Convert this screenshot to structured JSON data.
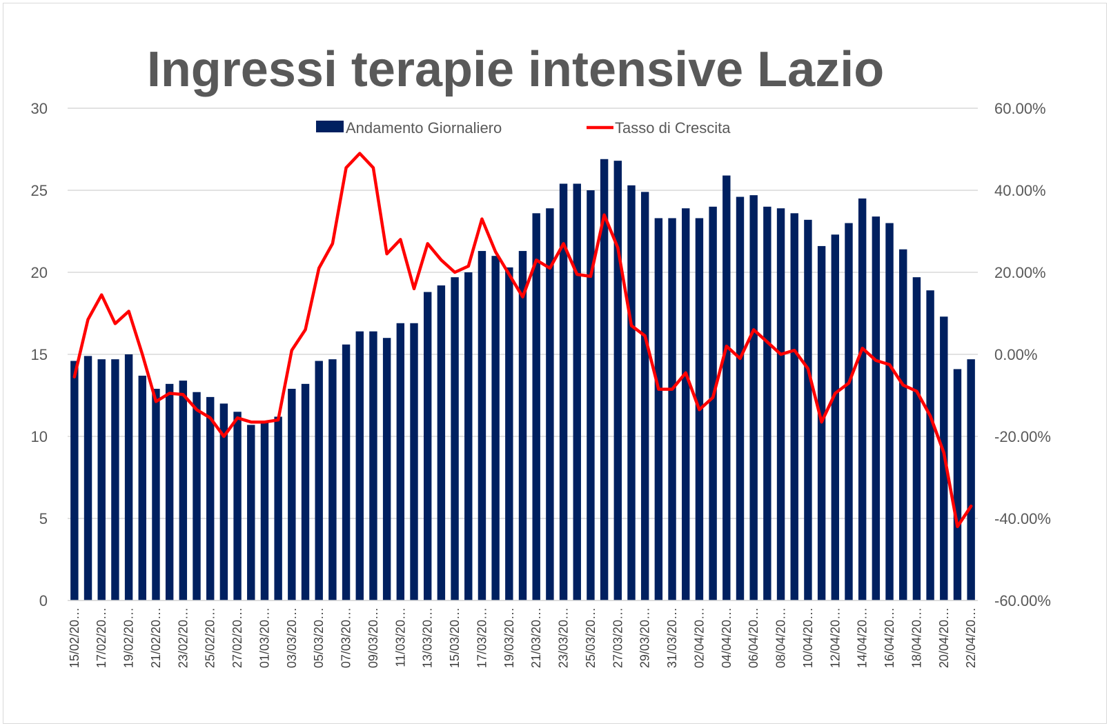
{
  "chart_data": {
    "type": "bar",
    "title": "Ingressi terapie intensive Lazio",
    "categories": [
      "15/02/20…",
      "16/02/20…",
      "17/02/20…",
      "18/02/20…",
      "19/02/20…",
      "20/02/20…",
      "21/02/20…",
      "22/02/20…",
      "23/02/20…",
      "24/02/20…",
      "25/02/20…",
      "26/02/20…",
      "27/02/20…",
      "28/02/20…",
      "01/03/20…",
      "02/03/20…",
      "03/03/20…",
      "04/03/20…",
      "05/03/20…",
      "06/03/20…",
      "07/03/20…",
      "08/03/20…",
      "09/03/20…",
      "10/03/20…",
      "11/03/20…",
      "12/03/20…",
      "13/03/20…",
      "14/03/20…",
      "15/03/20…",
      "16/03/20…",
      "17/03/20…",
      "18/03/20…",
      "19/03/20…",
      "20/03/20…",
      "21/03/20…",
      "22/03/20…",
      "23/03/20…",
      "24/03/20…",
      "25/03/20…",
      "26/03/20…",
      "27/03/20…",
      "28/03/20…",
      "29/03/20…",
      "30/03/20…",
      "31/03/20…",
      "01/04/20…",
      "02/04/20…",
      "03/04/20…",
      "04/04/20…",
      "05/04/20…",
      "06/04/20…",
      "07/04/20…",
      "08/04/20…",
      "09/04/20…",
      "10/04/20…",
      "11/04/20…",
      "12/04/20…",
      "13/04/20…",
      "14/04/20…",
      "15/04/20…",
      "16/04/20…",
      "17/04/20…",
      "18/04/20…",
      "19/04/20…",
      "20/04/20…",
      "21/04/20…",
      "22/04/20…"
    ],
    "series": [
      {
        "name": "Andamento Giornaliero",
        "kind": "bar",
        "axis": "left",
        "color": "#002060",
        "values": [
          14.6,
          14.9,
          14.7,
          14.7,
          15.0,
          13.7,
          12.9,
          13.2,
          13.4,
          12.7,
          12.4,
          12.0,
          11.5,
          10.7,
          10.9,
          11.2,
          12.9,
          13.2,
          14.6,
          14.7,
          15.6,
          16.4,
          16.4,
          16.0,
          16.9,
          16.9,
          18.8,
          19.2,
          19.7,
          20.0,
          21.3,
          21.0,
          20.3,
          21.3,
          23.6,
          23.9,
          25.4,
          25.4,
          25.0,
          26.9,
          26.8,
          25.3,
          24.9,
          23.3,
          23.3,
          23.9,
          23.3,
          24.0,
          25.9,
          24.6,
          24.7,
          24.0,
          23.9,
          23.6,
          23.2,
          21.6,
          22.3,
          23.0,
          24.5,
          23.4,
          23.0,
          21.4,
          19.7,
          18.9,
          17.3,
          14.1,
          14.7
        ]
      },
      {
        "name": "Tasso di Crescita",
        "kind": "line",
        "axis": "right",
        "color": "#ff0000",
        "values": [
          -5.5,
          8.5,
          14.5,
          7.5,
          10.5,
          0.0,
          -11.5,
          -9.5,
          -9.8,
          -13.5,
          -15.5,
          -20.0,
          -15.5,
          -16.5,
          -16.5,
          -16.0,
          1.0,
          6.0,
          21.0,
          27.0,
          45.5,
          49.0,
          45.5,
          24.5,
          28.0,
          16.0,
          27.0,
          23.0,
          20.0,
          21.5,
          33.0,
          25.0,
          19.5,
          14.0,
          23.0,
          21.0,
          27.0,
          19.5,
          19.0,
          34.0,
          26.0,
          7.0,
          4.5,
          -8.5,
          -8.5,
          -4.5,
          -13.5,
          -10.5,
          2.0,
          -1.0,
          6.0,
          3.0,
          0.0,
          1.0,
          -3.5,
          -16.5,
          -9.5,
          -7.0,
          1.5,
          -1.5,
          -2.5,
          -7.5,
          -9.0,
          -15.0,
          -24.0,
          -42.0,
          -37.0
        ]
      }
    ],
    "y_left": {
      "min": 0,
      "max": 30,
      "ticks": [
        "0",
        "5",
        "10",
        "15",
        "20",
        "25",
        "30"
      ]
    },
    "y_right": {
      "min": -60,
      "max": 60,
      "ticks": [
        "-60.00%",
        "-40.00%",
        "-20.00%",
        "0.00%",
        "20.00%",
        "40.00%",
        "60.00%"
      ]
    },
    "legend": {
      "placement": "top-center",
      "items": [
        {
          "label": "Andamento Giornaliero",
          "color": "#002060"
        },
        {
          "label": "Tasso di Crescita",
          "color": "#ff0000"
        }
      ]
    },
    "grid": true,
    "x_label_every": 2
  }
}
